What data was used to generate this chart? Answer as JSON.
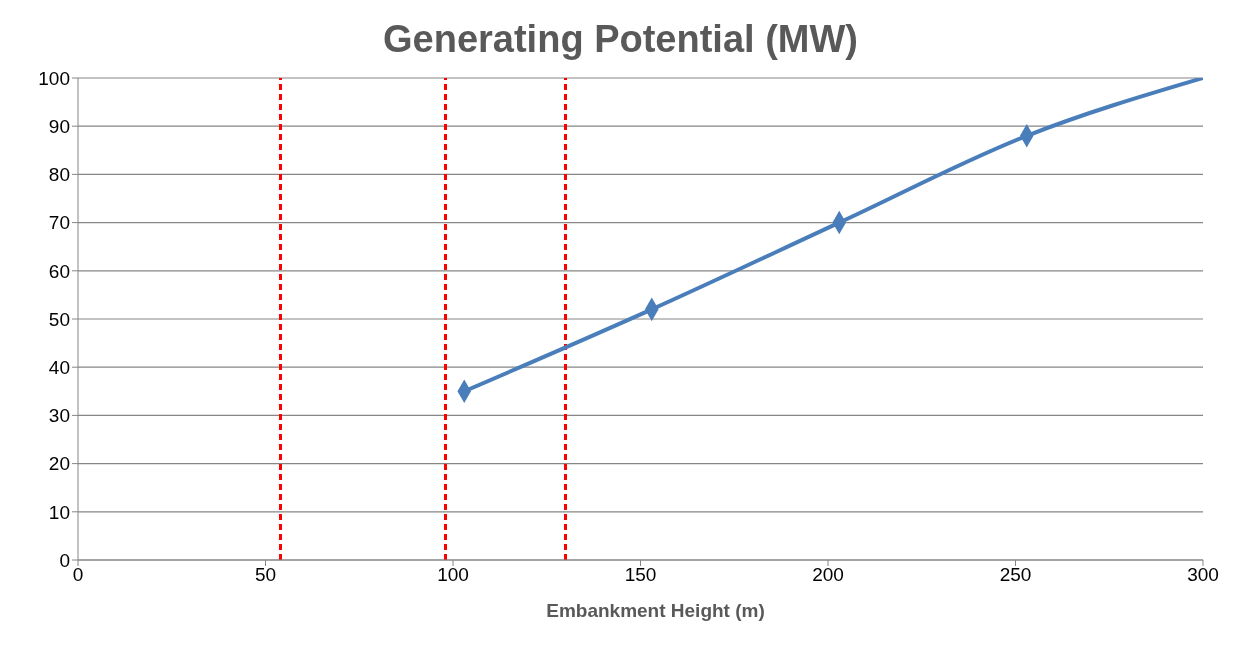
{
  "chart_data": {
    "type": "line",
    "title": "Generating Potential (MW)",
    "xlabel": "Embankment Height (m)",
    "series": [
      {
        "color": "#4a7ebb",
        "x": [
          103,
          153,
          203,
          253,
          300
        ],
        "values": [
          35,
          52,
          70,
          88,
          100
        ],
        "marker": "none"
      },
      {
        "type": "scatter",
        "color": "#4a7ebb",
        "x": [
          103,
          153,
          203,
          253
        ],
        "values": [
          35,
          52,
          70,
          88
        ],
        "marker": "diamond"
      }
    ],
    "xlim": [
      0,
      300
    ],
    "xticks": [
      0,
      50,
      100,
      150,
      200,
      250,
      300
    ],
    "ylim": [
      0,
      100
    ],
    "yticks": [
      0,
      10,
      20,
      30,
      40,
      50,
      60,
      70,
      80,
      90,
      100
    ],
    "grid": "y",
    "ref_lines": [
      {
        "axis": "x",
        "value": 54,
        "color": "#ff0000",
        "line_style": "dashed"
      },
      {
        "axis": "x",
        "value": 98,
        "color": "#ff0000",
        "line_style": "dashed"
      },
      {
        "axis": "x",
        "value": 130,
        "color": "#ff0000",
        "line_style": "dashed"
      }
    ]
  }
}
